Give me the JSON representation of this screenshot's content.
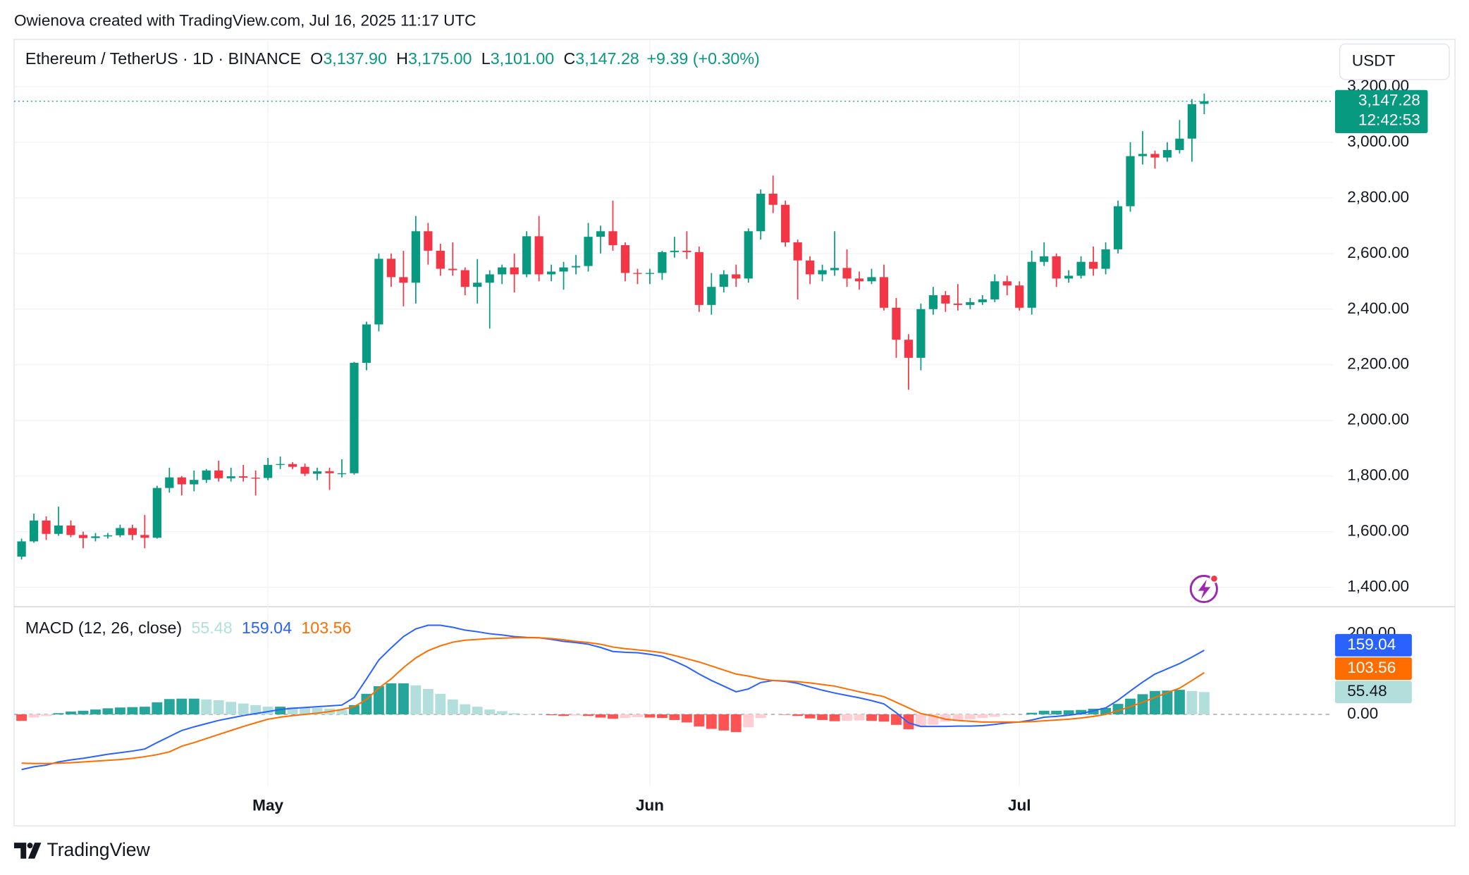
{
  "header": {
    "attribution": "Owienova created with TradingView.com, Jul 16, 2025 11:17 UTC",
    "symbol": "Ethereum / TetherUS · 1D · BINANCE",
    "ohlc": [
      {
        "key": "O",
        "value": "3,137.90"
      },
      {
        "key": "H",
        "value": "3,175.00"
      },
      {
        "key": "L",
        "value": "3,101.00"
      },
      {
        "key": "C",
        "value": "3,147.28"
      }
    ],
    "change": "+9.39 (+0.30%)",
    "currency": "USDT",
    "countdown": "12:42:53"
  },
  "chart_data": [
    {
      "type": "candlestick",
      "up_color": "#089981",
      "down_color": "#f23645",
      "grid": true,
      "categories": [
        null,
        null,
        null,
        null,
        null,
        null,
        null,
        null,
        null,
        null,
        null,
        null,
        null,
        null,
        null,
        null,
        null,
        null,
        null,
        null,
        "May",
        null,
        null,
        null,
        null,
        null,
        null,
        null,
        null,
        null,
        null,
        null,
        null,
        null,
        null,
        null,
        null,
        null,
        null,
        null,
        null,
        null,
        null,
        null,
        null,
        null,
        null,
        null,
        null,
        null,
        null,
        "Jun",
        null,
        null,
        null,
        null,
        null,
        null,
        null,
        null,
        null,
        null,
        null,
        null,
        null,
        null,
        null,
        null,
        null,
        null,
        null,
        null,
        null,
        null,
        null,
        null,
        null,
        null,
        null,
        null,
        null,
        "Jul",
        null,
        null,
        null,
        null,
        null,
        null,
        null,
        null,
        null,
        null,
        null,
        null,
        null,
        null,
        null
      ],
      "open": [
        1510,
        1565,
        1640,
        1592,
        1622,
        1588,
        1577,
        1583,
        1587,
        1613,
        1588,
        1578,
        1757,
        1795,
        1770,
        1786,
        1820,
        1792,
        1799,
        1794,
        1793,
        1840,
        1843,
        1833,
        1808,
        1817,
        1810,
        1810,
        2207,
        2345,
        2581,
        2515,
        2495,
        2680,
        2610,
        2545,
        2540,
        2480,
        2495,
        2525,
        2550,
        2525,
        2662,
        2525,
        2535,
        2550,
        2555,
        2660,
        2680,
        2630,
        2530,
        2527,
        2530,
        2605,
        2610,
        2605,
        2415,
        2480,
        2525,
        2510,
        2680,
        2815,
        2775,
        2640,
        2575,
        2525,
        2540,
        2548,
        2510,
        2500,
        2515,
        2405,
        2290,
        2225,
        2400,
        2450,
        2420,
        2415,
        2425,
        2435,
        2500,
        2485,
        2405,
        2570,
        2590,
        2510,
        2520,
        2570,
        2545,
        2615,
        2770,
        2950,
        2958,
        2945,
        2972,
        3013,
        3137.9
      ],
      "high": [
        1575,
        1665,
        1655,
        1690,
        1640,
        1600,
        1595,
        1595,
        1625,
        1625,
        1660,
        1765,
        1830,
        1800,
        1820,
        1825,
        1855,
        1830,
        1840,
        1820,
        1865,
        1870,
        1850,
        1845,
        1830,
        1830,
        1860,
        2210,
        2355,
        2600,
        2600,
        2610,
        2735,
        2710,
        2635,
        2640,
        2550,
        2580,
        2540,
        2560,
        2600,
        2680,
        2735,
        2560,
        2570,
        2595,
        2710,
        2700,
        2790,
        2640,
        2545,
        2545,
        2610,
        2660,
        2680,
        2625,
        2530,
        2540,
        2560,
        2690,
        2830,
        2880,
        2790,
        2650,
        2590,
        2560,
        2680,
        2615,
        2535,
        2545,
        2560,
        2440,
        2310,
        2420,
        2480,
        2465,
        2490,
        2440,
        2450,
        2525,
        2520,
        2500,
        2610,
        2640,
        2600,
        2540,
        2590,
        2625,
        2640,
        2790,
        3000,
        3040,
        2970,
        3000,
        3080,
        3155,
        3175
      ],
      "low": [
        1500,
        1560,
        1570,
        1585,
        1580,
        1540,
        1565,
        1575,
        1580,
        1570,
        1540,
        1575,
        1740,
        1730,
        1745,
        1775,
        1780,
        1780,
        1780,
        1730,
        1785,
        1825,
        1825,
        1800,
        1785,
        1750,
        1795,
        1805,
        2180,
        2320,
        2480,
        2410,
        2420,
        2560,
        2520,
        2520,
        2450,
        2420,
        2330,
        2490,
        2460,
        2515,
        2500,
        2500,
        2470,
        2525,
        2535,
        2600,
        2610,
        2500,
        2490,
        2490,
        2505,
        2585,
        2580,
        2390,
        2380,
        2460,
        2480,
        2495,
        2650,
        2745,
        2625,
        2435,
        2490,
        2500,
        2520,
        2480,
        2470,
        2490,
        2395,
        2225,
        2110,
        2180,
        2380,
        2390,
        2395,
        2400,
        2415,
        2425,
        2450,
        2395,
        2380,
        2555,
        2480,
        2495,
        2510,
        2520,
        2525,
        2600,
        2750,
        2920,
        2905,
        2930,
        2960,
        2930,
        3101
      ],
      "close": [
        1565,
        1640,
        1592,
        1622,
        1588,
        1577,
        1583,
        1587,
        1613,
        1588,
        1578,
        1757,
        1795,
        1770,
        1786,
        1820,
        1792,
        1799,
        1794,
        1793,
        1840,
        1843,
        1833,
        1808,
        1817,
        1810,
        1810,
        2207,
        2345,
        2581,
        2515,
        2495,
        2680,
        2610,
        2545,
        2540,
        2480,
        2495,
        2525,
        2550,
        2525,
        2662,
        2525,
        2535,
        2550,
        2555,
        2660,
        2680,
        2630,
        2530,
        2527,
        2530,
        2605,
        2610,
        2605,
        2415,
        2480,
        2525,
        2510,
        2680,
        2815,
        2775,
        2640,
        2575,
        2525,
        2540,
        2548,
        2510,
        2500,
        2515,
        2405,
        2290,
        2225,
        2400,
        2450,
        2420,
        2415,
        2425,
        2435,
        2500,
        2485,
        2405,
        2570,
        2590,
        2510,
        2520,
        2570,
        2545,
        2615,
        2770,
        2950,
        2958,
        2945,
        2972,
        3013,
        3137,
        3147.28
      ],
      "close_label": "3,147.28",
      "ylim": [
        1330,
        3370
      ],
      "yticks": [
        {
          "value": 1400,
          "label": "1,400.00"
        },
        {
          "value": 1600,
          "label": "1,600.00"
        },
        {
          "value": 1800,
          "label": "1,800.00"
        },
        {
          "value": 2000,
          "label": "2,000.00"
        },
        {
          "value": 2200,
          "label": "2,200.00"
        },
        {
          "value": 2400,
          "label": "2,400.00"
        },
        {
          "value": 2600,
          "label": "2,600.00"
        },
        {
          "value": 2800,
          "label": "2,800.00"
        },
        {
          "value": 3000,
          "label": "3,000.00"
        },
        {
          "value": 3200,
          "label": "3,200.00"
        }
      ]
    },
    {
      "type": "macd",
      "title": "MACD (12, 26, close)",
      "ylim": [
        -179,
        267
      ],
      "yticks": [
        {
          "value": 0,
          "label": "0.00"
        },
        {
          "value": 200,
          "label": "200.00"
        }
      ],
      "histogram": {
        "palette": [
          "#26a69a",
          "#b2dfdb",
          "#ff5252",
          "#ffcdd2"
        ],
        "values": [
          -16,
          -8,
          -4,
          3,
          7,
          9,
          12,
          15,
          17,
          18,
          19,
          30,
          38,
          39,
          39,
          37,
          35,
          31,
          27,
          23,
          19,
          19,
          18,
          17,
          16,
          14,
          11,
          23,
          51,
          70,
          77,
          77,
          72,
          63,
          51,
          37,
          25,
          19,
          12,
          8,
          3,
          1,
          0,
          -2,
          -4,
          -3,
          -4,
          -8,
          -11,
          -9,
          -7,
          -8,
          -9,
          -14,
          -20,
          -30,
          -36,
          -40,
          -44,
          -32,
          -9,
          0,
          -1,
          -4,
          -10,
          -14,
          -17,
          -16,
          -15,
          -16,
          -18,
          -26,
          -37,
          -32,
          -26,
          -18,
          -14,
          -12,
          -9,
          -6,
          -2,
          0,
          4,
          9,
          9,
          10,
          11,
          14,
          16,
          26,
          39,
          50,
          58,
          59,
          61,
          58,
          55.48
        ]
      },
      "macd_line": {
        "color": "#2962ff",
        "values": [
          -137,
          -130,
          -126,
          -118,
          -113,
          -109,
          -104,
          -99,
          -95,
          -91,
          -86,
          -70,
          -55,
          -40,
          -31,
          -23,
          -15,
          -9,
          -3,
          2,
          7,
          12,
          15,
          17,
          19,
          21,
          23,
          42,
          88,
          135,
          165,
          193,
          212,
          221,
          221,
          216,
          209,
          205,
          200,
          197,
          193,
          191,
          190,
          186,
          181,
          178,
          174,
          166,
          156,
          154,
          153,
          149,
          144,
          132,
          118,
          100,
          84,
          70,
          56,
          63,
          79,
          84,
          82,
          77,
          68,
          60,
          53,
          47,
          41,
          34,
          26,
          4,
          -21,
          -30,
          -30,
          -30,
          -29,
          -29,
          -28,
          -25,
          -21,
          -19,
          -14,
          -7,
          -5,
          -2,
          2,
          9,
          16,
          35,
          58,
          80,
          100,
          113,
          126,
          142,
          159.04
        ]
      },
      "signal_line": {
        "color": "#ff6d00",
        "values": [
          -121,
          -122,
          -122,
          -121,
          -120,
          -118,
          -116,
          -114,
          -112,
          -109,
          -105,
          -100,
          -93,
          -79,
          -70,
          -60,
          -50,
          -40,
          -30,
          -21,
          -12,
          -7,
          -3,
          0,
          3,
          7,
          12,
          19,
          37,
          65,
          88,
          116,
          140,
          158,
          170,
          179,
          184,
          186,
          188,
          189,
          190,
          190,
          190,
          188,
          185,
          181,
          178,
          174,
          167,
          163,
          160,
          157,
          153,
          146,
          138,
          130,
          120,
          110,
          100,
          95,
          88,
          84,
          83,
          81,
          78,
          74,
          70,
          63,
          56,
          50,
          44,
          30,
          16,
          2,
          -4,
          -12,
          -15,
          -17,
          -19,
          -19,
          -19,
          -19,
          -18,
          -16,
          -14,
          -12,
          -9,
          -5,
          0,
          9,
          19,
          30,
          42,
          54,
          65,
          84,
          103.56
        ]
      }
    }
  ],
  "footer": {
    "brand": "TradingView"
  }
}
